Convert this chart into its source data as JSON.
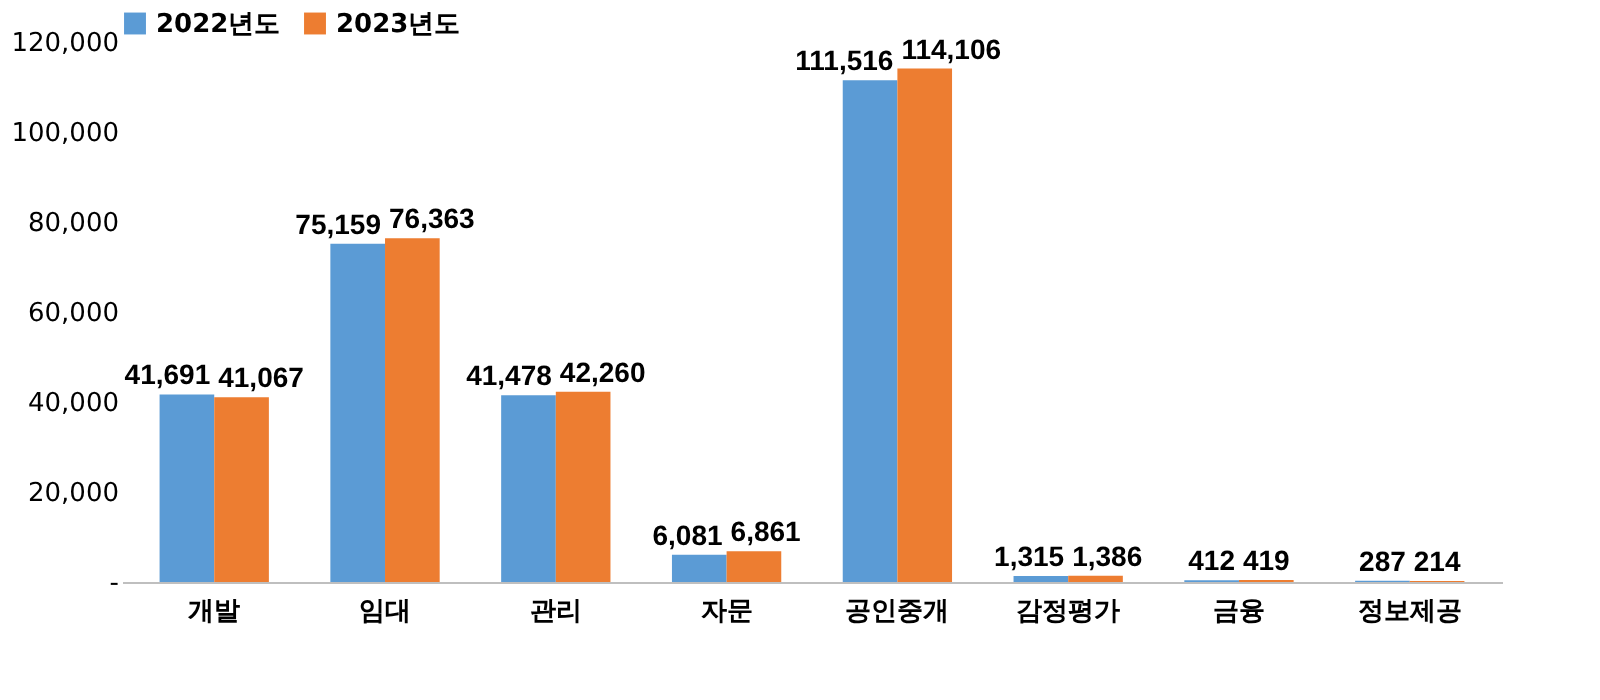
{
  "chart_data": {
    "type": "bar",
    "categories": [
      "개발",
      "임대",
      "관리",
      "자문",
      "공인중개",
      "감정평가",
      "금융",
      "정보제공"
    ],
    "series": [
      {
        "name": "2022년도",
        "color": "#5b9bd5",
        "values": [
          41691,
          75159,
          41478,
          6081,
          111516,
          1315,
          412,
          287
        ],
        "value_labels": [
          "41,691",
          "75,159",
          "41,478",
          "6,081",
          "111,516",
          "1,315",
          "412",
          "287"
        ]
      },
      {
        "name": "2023년도",
        "color": "#ed7d31",
        "values": [
          41067,
          76363,
          42260,
          6861,
          114106,
          1386,
          419,
          214
        ],
        "value_labels": [
          "41,067",
          "76,363",
          "42,260",
          "6,861",
          "114,106",
          "1,386",
          "419",
          "214"
        ]
      }
    ],
    "ylim": [
      0,
      120000
    ],
    "yticks": [
      {
        "value": 0,
        "label": "-"
      },
      {
        "value": 20000,
        "label": "20,000"
      },
      {
        "value": 40000,
        "label": "40,000"
      },
      {
        "value": 60000,
        "label": "60,000"
      },
      {
        "value": 80000,
        "label": "80,000"
      },
      {
        "value": 100000,
        "label": "100,000"
      },
      {
        "value": 120000,
        "label": "120,000"
      }
    ],
    "grid": false,
    "legend": "top"
  }
}
